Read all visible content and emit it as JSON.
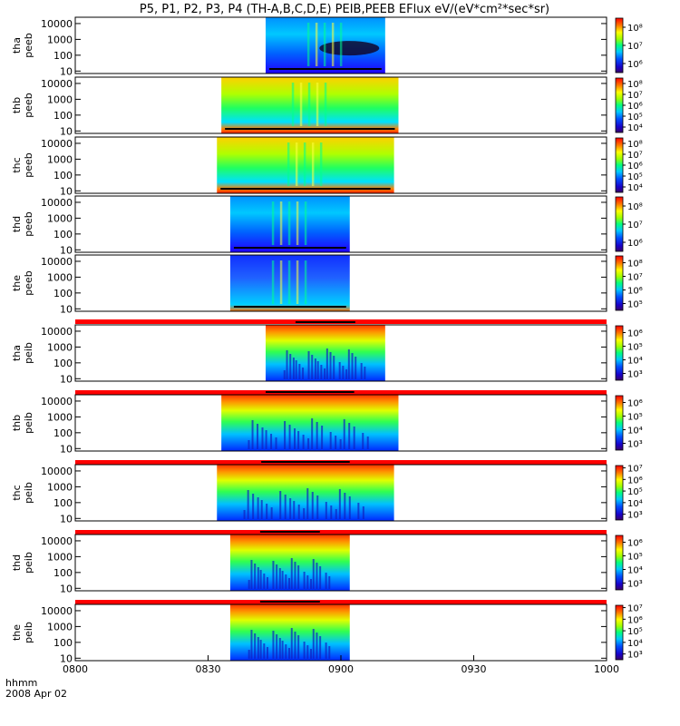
{
  "chart_data": {
    "type": "heatmap",
    "title": "P5, P1, P2, P3, P4 (TH-A,B,C,D,E) PEIB,PEEB EFlux eV/(eV*cm²*sec*sr)",
    "x_range": [
      "0800",
      "1000"
    ],
    "x_ticks": [
      "0800",
      "0830",
      "0900",
      "0930",
      "1000"
    ],
    "x_units": "hhmm",
    "date": "2008 Apr 02",
    "energy_ticks": [
      "10",
      "100",
      "1000",
      "10000"
    ],
    "energy_range_eV": [
      7,
      25000
    ],
    "y_scale": "log",
    "panels": [
      {
        "label": [
          "tha",
          "peeb"
        ],
        "time_span": [
          "0843",
          "0910"
        ],
        "colorbar_ticks": [
          "10⁶",
          "10⁷",
          "10⁸"
        ],
        "colorbar_exp_range": [
          5.5,
          8.5
        ]
      },
      {
        "label": [
          "thb",
          "peeb"
        ],
        "time_span": [
          "0833",
          "0913"
        ],
        "colorbar_ticks": [
          "10⁴",
          "10⁵",
          "10⁶",
          "10⁷",
          "10⁸"
        ],
        "colorbar_exp_range": [
          3.5,
          8.5
        ]
      },
      {
        "label": [
          "thc",
          "peeb"
        ],
        "time_span": [
          "0832",
          "0912"
        ],
        "colorbar_ticks": [
          "10⁴",
          "10⁵",
          "10⁶",
          "10⁷",
          "10⁸"
        ],
        "colorbar_exp_range": [
          3.5,
          8.5
        ]
      },
      {
        "label": [
          "thd",
          "peeb"
        ],
        "time_span": [
          "0835",
          "0902"
        ],
        "colorbar_ticks": [
          "10⁶",
          "10⁷",
          "10⁸"
        ],
        "colorbar_exp_range": [
          5.5,
          8.5
        ]
      },
      {
        "label": [
          "the",
          "peeb"
        ],
        "time_span": [
          "0835",
          "0902"
        ],
        "colorbar_ticks": [
          "10⁵",
          "10⁶",
          "10⁷",
          "10⁸"
        ],
        "colorbar_exp_range": [
          4.5,
          8.5
        ]
      },
      {
        "label": [
          "tha",
          "peib"
        ],
        "time_span": [
          "0843",
          "0910"
        ],
        "colorbar_ticks": [
          "10³",
          "10⁴",
          "10⁵",
          "10⁶"
        ],
        "colorbar_exp_range": [
          2.5,
          6.5
        ]
      },
      {
        "label": [
          "thb",
          "peib"
        ],
        "time_span": [
          "0833",
          "0913"
        ],
        "colorbar_ticks": [
          "10³",
          "10⁴",
          "10⁵",
          "10⁶"
        ],
        "colorbar_exp_range": [
          2.5,
          6.5
        ]
      },
      {
        "label": [
          "thc",
          "peib"
        ],
        "time_span": [
          "0832",
          "0912"
        ],
        "colorbar_ticks": [
          "10³",
          "10⁴",
          "10⁵",
          "10⁶",
          "10⁷"
        ],
        "colorbar_exp_range": [
          2.5,
          7.2
        ]
      },
      {
        "label": [
          "thd",
          "peib"
        ],
        "time_span": [
          "0835",
          "0902"
        ],
        "colorbar_ticks": [
          "10³",
          "10⁴",
          "10⁵",
          "10⁶"
        ],
        "colorbar_exp_range": [
          2.5,
          6.5
        ]
      },
      {
        "label": [
          "the",
          "peib"
        ],
        "time_span": [
          "0835",
          "0902"
        ],
        "colorbar_ticks": [
          "10³",
          "10⁴",
          "10⁵",
          "10⁶",
          "10⁷"
        ],
        "colorbar_exp_range": [
          2.5,
          7.2
        ]
      }
    ]
  }
}
